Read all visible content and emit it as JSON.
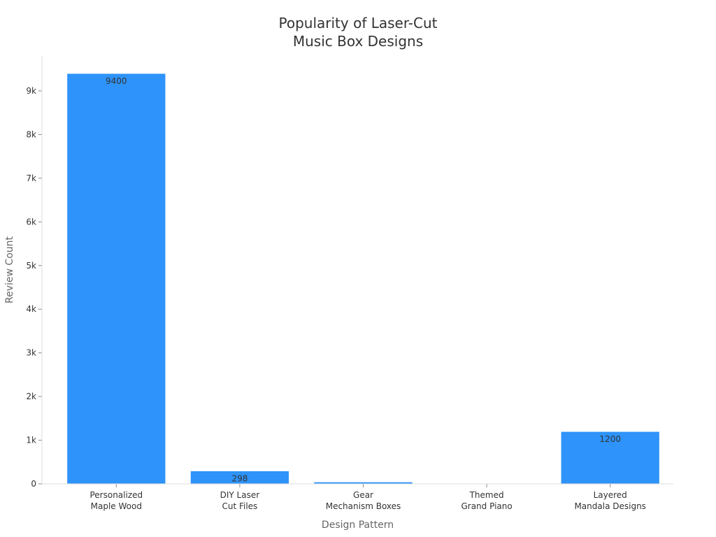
{
  "chart_data": {
    "type": "bar",
    "title": [
      "Popularity of Laser-Cut",
      "Music Box Designs"
    ],
    "xlabel": "Design Pattern",
    "ylabel": "Review Count",
    "categories": [
      [
        "Personalized",
        "Maple Wood"
      ],
      [
        "DIY Laser",
        "Cut Files"
      ],
      [
        "Gear",
        "Mechanism Boxes"
      ],
      [
        "Themed",
        "Grand Piano"
      ],
      [
        "Layered",
        "Mandala Designs"
      ]
    ],
    "values": [
      9400,
      298,
      45,
      12,
      1200
    ],
    "data_labels": [
      "9400",
      "298",
      "",
      "",
      "1200"
    ],
    "ylim": [
      0,
      9800
    ],
    "yticks": [
      0,
      1000,
      2000,
      3000,
      4000,
      5000,
      6000,
      7000,
      8000,
      9000
    ],
    "ytick_labels": [
      "0",
      "1k",
      "2k",
      "3k",
      "4k",
      "5k",
      "6k",
      "7k",
      "8k",
      "9k"
    ],
    "grid": false,
    "bar_color": "#2e93fa",
    "bar_edge_color": "#ffffff"
  }
}
